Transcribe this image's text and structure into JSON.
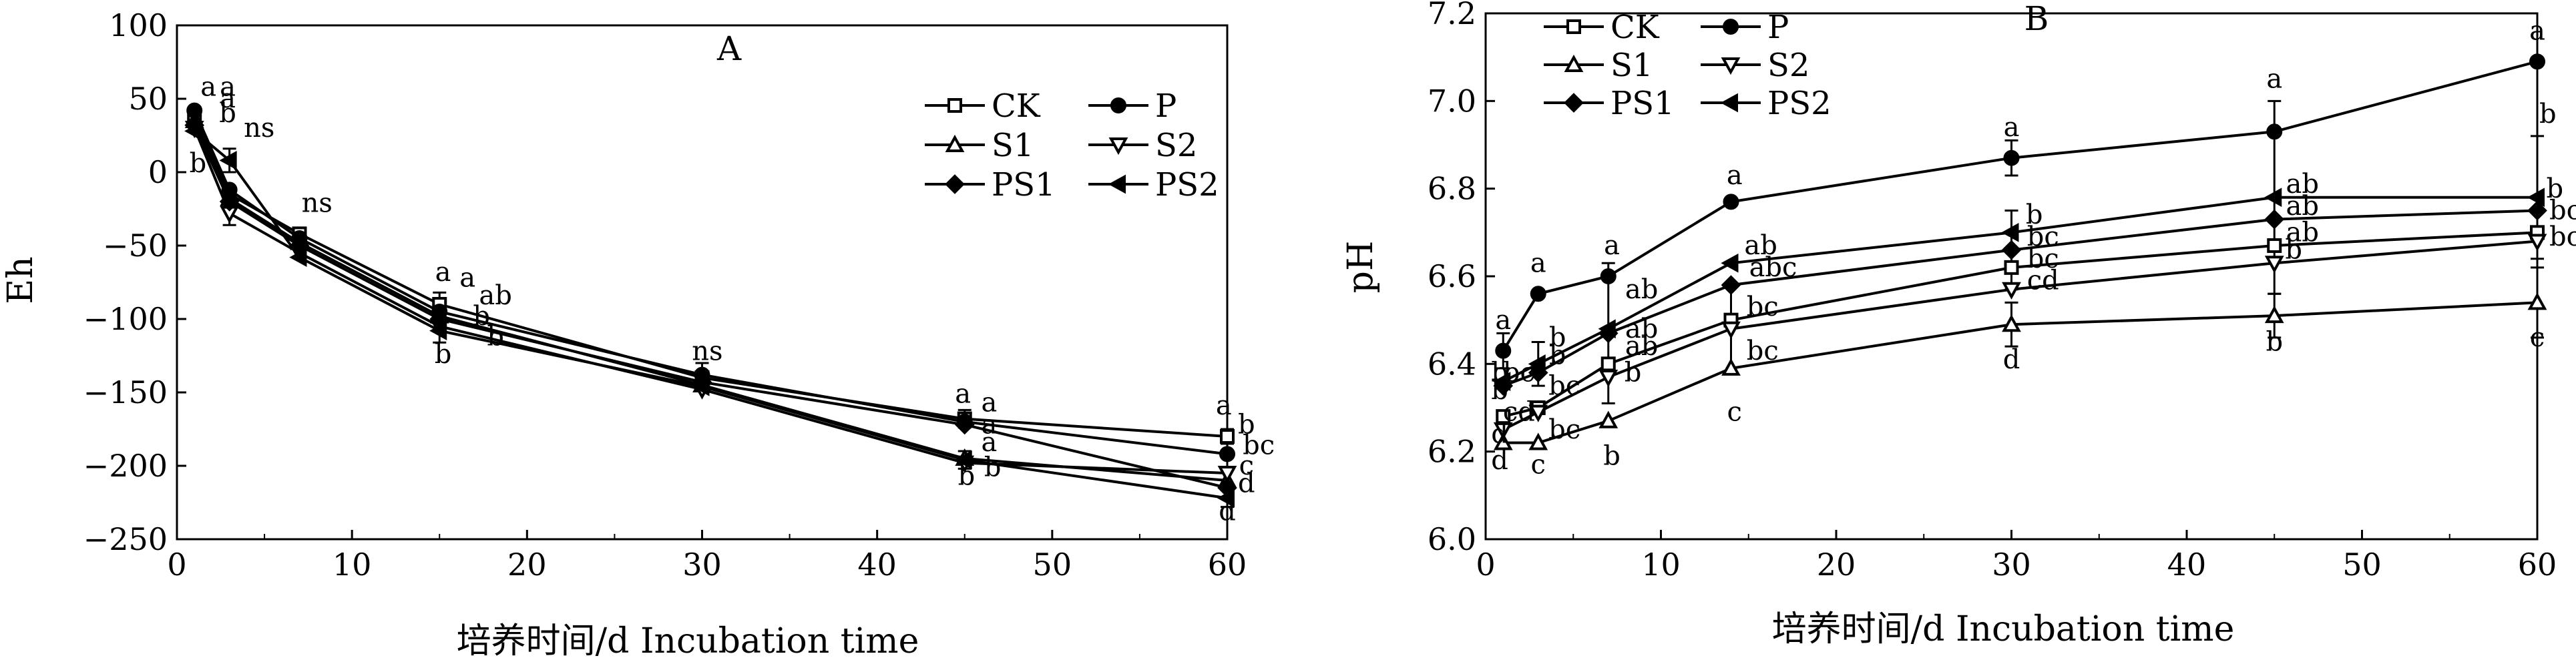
{
  "chart_data": [
    {
      "type": "line",
      "title": "A",
      "xlabel": "培养时间/d  Incubation time",
      "ylabel": "Eh",
      "xlim": [
        0,
        60
      ],
      "ylim": [
        -250,
        100
      ],
      "xticks": [
        0,
        10,
        20,
        30,
        40,
        50,
        60
      ],
      "yticks": [
        100,
        50,
        0,
        -50,
        -100,
        -150,
        -200,
        -250
      ],
      "ytick_labels": [
        "100",
        "50",
        "0",
        "−50",
        "−100",
        "−150",
        "−200",
        "−250"
      ],
      "legend_position": "top-right",
      "x": [
        1,
        3,
        7,
        15,
        30,
        45,
        60
      ],
      "series": [
        {
          "name": "CK",
          "marker": "square-open",
          "values": [
            38,
            -15,
            -42,
            -90,
            -140,
            -168,
            -180
          ]
        },
        {
          "name": "P",
          "marker": "circle-filled",
          "values": [
            42,
            -12,
            -45,
            -95,
            -138,
            -170,
            -192
          ]
        },
        {
          "name": "S1",
          "marker": "triangle-up-open",
          "values": [
            35,
            -18,
            -48,
            -98,
            -145,
            -195,
            -210
          ]
        },
        {
          "name": "S2",
          "marker": "triangle-down-open",
          "values": [
            30,
            -28,
            -55,
            -105,
            -148,
            -198,
            -205
          ]
        },
        {
          "name": "PS1",
          "marker": "diamond-filled",
          "values": [
            32,
            -20,
            -50,
            -100,
            -143,
            -172,
            -215
          ]
        },
        {
          "name": "PS2",
          "marker": "triangle-left-filled",
          "values": [
            28,
            8,
            -58,
            -108,
            -146,
            -196,
            -222
          ]
        }
      ],
      "error_bars": [
        {
          "x": 3,
          "y": 8,
          "err": 8
        },
        {
          "x": 3,
          "y": -28,
          "err": 8
        },
        {
          "x": 15,
          "y": -90,
          "err": 8
        },
        {
          "x": 15,
          "y": -108,
          "err": 8
        },
        {
          "x": 30,
          "y": -138,
          "err": 8
        },
        {
          "x": 45,
          "y": -168,
          "err": 6
        },
        {
          "x": 45,
          "y": -196,
          "err": 6
        },
        {
          "x": 60,
          "y": -180,
          "err": 5
        },
        {
          "x": 60,
          "y": -222,
          "err": 6
        }
      ],
      "annotations": [
        {
          "text": "a",
          "x": 1.8,
          "y": 52
        },
        {
          "text": "a",
          "x": 2.9,
          "y": 52
        },
        {
          "text": "a",
          "x": 2.9,
          "y": 44
        },
        {
          "text": "b",
          "x": 2.9,
          "y": 34
        },
        {
          "text": "ns",
          "x": 4.7,
          "y": 24
        },
        {
          "text": "b",
          "x": 1.2,
          "y": 0
        },
        {
          "text": "ns",
          "x": 8.0,
          "y": -27
        },
        {
          "text": "a",
          "x": 15.2,
          "y": -74
        },
        {
          "text": "a",
          "x": 16.6,
          "y": -78
        },
        {
          "text": "ab",
          "x": 18.2,
          "y": -90
        },
        {
          "text": "b",
          "x": 17.4,
          "y": -104
        },
        {
          "text": "b",
          "x": 18.2,
          "y": -118
        },
        {
          "text": "b",
          "x": 15.2,
          "y": -130
        },
        {
          "text": "ns",
          "x": 30.3,
          "y": -128
        },
        {
          "text": "a",
          "x": 44.9,
          "y": -157
        },
        {
          "text": "a",
          "x": 46.4,
          "y": -163
        },
        {
          "text": "a",
          "x": 46.4,
          "y": -178
        },
        {
          "text": "a",
          "x": 46.4,
          "y": -190
        },
        {
          "text": "b",
          "x": 46.6,
          "y": -207
        },
        {
          "text": "b",
          "x": 45.1,
          "y": -213
        },
        {
          "text": "a",
          "x": 59.8,
          "y": -165
        },
        {
          "text": "b",
          "x": 61.1,
          "y": -178
        },
        {
          "text": "bc",
          "x": 61.8,
          "y": -192
        },
        {
          "text": "c",
          "x": 61.1,
          "y": -206
        },
        {
          "text": "d",
          "x": 61.1,
          "y": -218
        },
        {
          "text": "d",
          "x": 60.0,
          "y": -237
        }
      ]
    },
    {
      "type": "line",
      "title": "B",
      "xlabel": "培养时间/d  Incubation time",
      "ylabel": "pH",
      "xlim": [
        0,
        60
      ],
      "ylim": [
        6.0,
        7.2
      ],
      "xticks": [
        0,
        10,
        20,
        30,
        40,
        50,
        60
      ],
      "yticks": [
        7.2,
        7.0,
        6.8,
        6.6,
        6.4,
        6.2,
        6.0
      ],
      "ytick_labels": [
        "7.2",
        "7.0",
        "6.8",
        "6.6",
        "6.4",
        "6.2",
        "6.0"
      ],
      "legend_position": "top-left",
      "x": [
        1,
        3,
        7,
        14,
        30,
        45,
        60
      ],
      "series": [
        {
          "name": "CK",
          "marker": "square-open",
          "values": [
            6.28,
            6.3,
            6.4,
            6.5,
            6.62,
            6.67,
            6.7
          ]
        },
        {
          "name": "P",
          "marker": "circle-filled",
          "values": [
            6.43,
            6.56,
            6.6,
            6.77,
            6.87,
            6.93,
            7.09
          ]
        },
        {
          "name": "S1",
          "marker": "triangle-up-open",
          "values": [
            6.22,
            6.22,
            6.27,
            6.39,
            6.49,
            6.51,
            6.54
          ]
        },
        {
          "name": "S2",
          "marker": "triangle-down-open",
          "values": [
            6.25,
            6.29,
            6.37,
            6.48,
            6.57,
            6.63,
            6.68
          ]
        },
        {
          "name": "PS1",
          "marker": "diamond-filled",
          "values": [
            6.35,
            6.38,
            6.47,
            6.58,
            6.66,
            6.73,
            6.75
          ]
        },
        {
          "name": "PS2",
          "marker": "triangle-left-filled",
          "values": [
            6.36,
            6.4,
            6.48,
            6.63,
            6.7,
            6.78,
            6.78
          ]
        }
      ],
      "error_bars": [
        {
          "x": 1,
          "y": 6.43,
          "err": 0.04
        },
        {
          "x": 3,
          "y": 6.4,
          "err": 0.05
        },
        {
          "x": 7,
          "y": 6.47,
          "err": 0.16
        },
        {
          "x": 14,
          "y": 6.48,
          "err": 0.1
        },
        {
          "x": 30,
          "y": 6.87,
          "err": 0.04
        },
        {
          "x": 30,
          "y": 6.66,
          "err": 0.09
        },
        {
          "x": 30,
          "y": 6.49,
          "err": 0.05
        },
        {
          "x": 45,
          "y": 6.78,
          "err": 0.22
        },
        {
          "x": 45,
          "y": 6.51,
          "err": 0.05
        },
        {
          "x": 60,
          "y": 6.78,
          "err": 0.14
        },
        {
          "x": 60,
          "y": 6.54,
          "err": 0.08
        }
      ],
      "annotations": [
        {
          "text": "a",
          "x": 1.0,
          "y": 6.48
        },
        {
          "text": "b",
          "x": 0.8,
          "y": 6.36
        },
        {
          "text": "bc",
          "x": 1.9,
          "y": 6.36
        },
        {
          "text": "b",
          "x": 0.8,
          "y": 6.32
        },
        {
          "text": "cd",
          "x": 1.9,
          "y": 6.27
        },
        {
          "text": "d",
          "x": 0.8,
          "y": 6.22
        },
        {
          "text": "d",
          "x": 0.8,
          "y": 6.16
        },
        {
          "text": "a",
          "x": 3.0,
          "y": 6.61
        },
        {
          "text": "b",
          "x": 4.1,
          "y": 6.44
        },
        {
          "text": "b",
          "x": 4.1,
          "y": 6.4
        },
        {
          "text": "bc",
          "x": 4.5,
          "y": 6.33
        },
        {
          "text": "bc",
          "x": 4.5,
          "y": 6.23
        },
        {
          "text": "c",
          "x": 3.0,
          "y": 6.15
        },
        {
          "text": "a",
          "x": 7.2,
          "y": 6.65
        },
        {
          "text": "ab",
          "x": 8.9,
          "y": 6.55
        },
        {
          "text": "ab",
          "x": 8.9,
          "y": 6.46
        },
        {
          "text": "ab",
          "x": 8.9,
          "y": 6.42
        },
        {
          "text": "b",
          "x": 8.4,
          "y": 6.36
        },
        {
          "text": "b",
          "x": 7.2,
          "y": 6.17
        },
        {
          "text": "a",
          "x": 14.2,
          "y": 6.81
        },
        {
          "text": "ab",
          "x": 15.7,
          "y": 6.65
        },
        {
          "text": "abc",
          "x": 16.4,
          "y": 6.6
        },
        {
          "text": "bc",
          "x": 15.8,
          "y": 6.51
        },
        {
          "text": "bc",
          "x": 15.8,
          "y": 6.41
        },
        {
          "text": "c",
          "x": 14.2,
          "y": 6.27
        },
        {
          "text": "a",
          "x": 30.0,
          "y": 6.92
        },
        {
          "text": "b",
          "x": 31.3,
          "y": 6.72
        },
        {
          "text": "bc",
          "x": 31.8,
          "y": 6.67
        },
        {
          "text": "bc",
          "x": 31.8,
          "y": 6.62
        },
        {
          "text": "cd",
          "x": 31.8,
          "y": 6.57
        },
        {
          "text": "d",
          "x": 30.0,
          "y": 6.39
        },
        {
          "text": "a",
          "x": 45.0,
          "y": 7.03
        },
        {
          "text": "ab",
          "x": 46.6,
          "y": 6.79
        },
        {
          "text": "ab",
          "x": 46.6,
          "y": 6.74
        },
        {
          "text": "ab",
          "x": 46.6,
          "y": 6.68
        },
        {
          "text": "b",
          "x": 46.1,
          "y": 6.64
        },
        {
          "text": "b",
          "x": 45.0,
          "y": 6.43
        },
        {
          "text": "a",
          "x": 60.0,
          "y": 7.14
        },
        {
          "text": "b",
          "x": 60.6,
          "y": 6.95
        },
        {
          "text": "b",
          "x": 61.0,
          "y": 6.78
        },
        {
          "text": "bc",
          "x": 61.6,
          "y": 6.73
        },
        {
          "text": "bc",
          "x": 61.6,
          "y": 6.67
        },
        {
          "text": "c",
          "x": 60.0,
          "y": 6.44
        }
      ]
    }
  ]
}
